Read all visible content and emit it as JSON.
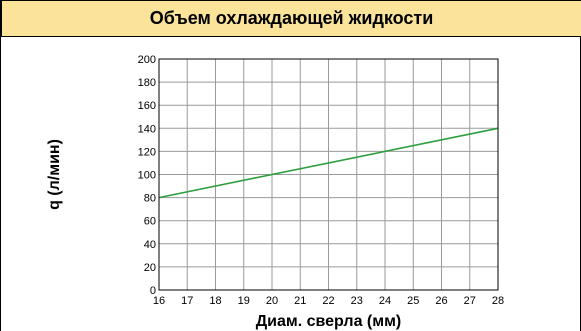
{
  "header": {
    "title": "Объем охлаждающей жидкости"
  },
  "chart_data": {
    "type": "line",
    "title": "Объем охлаждающей жидкости",
    "xlabel": "Диам. сверла (мм)",
    "ylabel": "q (л/мин)",
    "xlim": [
      16,
      28
    ],
    "ylim": [
      0,
      200
    ],
    "xticks": [
      "16",
      "17",
      "18",
      "19",
      "20",
      "21",
      "22",
      "23",
      "24",
      "25",
      "26",
      "27",
      "28"
    ],
    "yticks": [
      "0",
      "20",
      "40",
      "60",
      "80",
      "100",
      "120",
      "140",
      "160",
      "180",
      "200"
    ],
    "grid": true,
    "series": [
      {
        "x": [
          16,
          28
        ],
        "y": [
          80,
          140
        ],
        "color": "#2e9e3e"
      }
    ]
  }
}
